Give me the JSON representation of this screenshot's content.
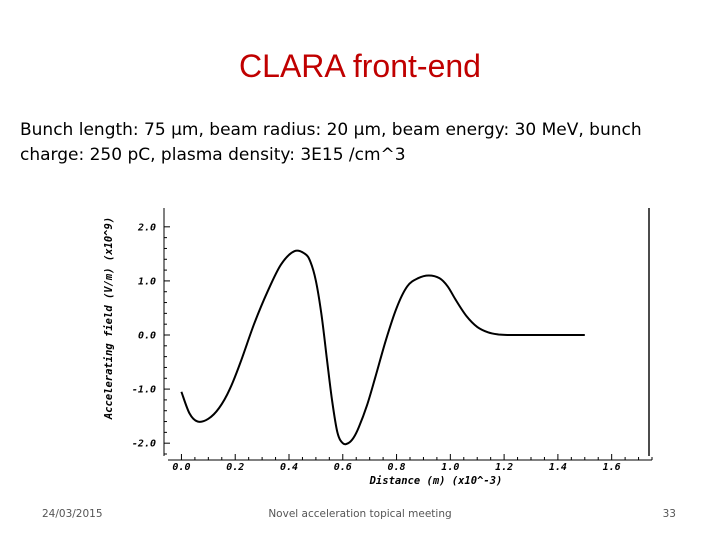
{
  "slide": {
    "title": "CLARA front-end",
    "body": "Bunch length: 75 µm, beam radius: 20 µm, beam energy: 30 MeV, bunch charge: 250 pC, plasma density: 3E15 /cm^3"
  },
  "footer": {
    "date": "24/03/2015",
    "center": "Novel acceleration topical meeting",
    "page": "33"
  },
  "chart_data": {
    "type": "line",
    "title": "",
    "xlabel": "Distance (m) (x10^-3)",
    "ylabel": "Accelerating field (V/m) (x10^9)",
    "xlim": [
      -0.05,
      1.75
    ],
    "ylim": [
      -2.2,
      2.2
    ],
    "xticks": [
      "0.0",
      "0.2",
      "0.4",
      "0.6",
      "0.8",
      "1.0",
      "1.2",
      "1.4",
      "1.6"
    ],
    "yticks": [
      "2.0",
      "1.0",
      "0.0",
      "-1.0",
      "-2.0"
    ],
    "grid": false,
    "series": [
      {
        "color": "#000000",
        "x": [
          0.0,
          0.03,
          0.06,
          0.1,
          0.14,
          0.18,
          0.22,
          0.27,
          0.32,
          0.37,
          0.42,
          0.46,
          0.48,
          0.5,
          0.52,
          0.54,
          0.56,
          0.58,
          0.6,
          0.62,
          0.64,
          0.66,
          0.69,
          0.72,
          0.76,
          0.8,
          0.84,
          0.88,
          0.92,
          0.96,
          0.99,
          1.02,
          1.06,
          1.1,
          1.14,
          1.18,
          1.22,
          1.26,
          1.3,
          1.4,
          1.5
        ],
        "y": [
          -1.05,
          -1.45,
          -1.6,
          -1.55,
          -1.35,
          -1.0,
          -0.5,
          0.2,
          0.8,
          1.3,
          1.55,
          1.5,
          1.35,
          1.0,
          0.4,
          -0.4,
          -1.2,
          -1.8,
          -2.0,
          -2.0,
          -1.9,
          -1.7,
          -1.3,
          -0.8,
          -0.1,
          0.5,
          0.9,
          1.05,
          1.1,
          1.05,
          0.9,
          0.65,
          0.35,
          0.15,
          0.05,
          0.01,
          0.0,
          0.0,
          0.0,
          0.0,
          0.0
        ]
      }
    ]
  }
}
